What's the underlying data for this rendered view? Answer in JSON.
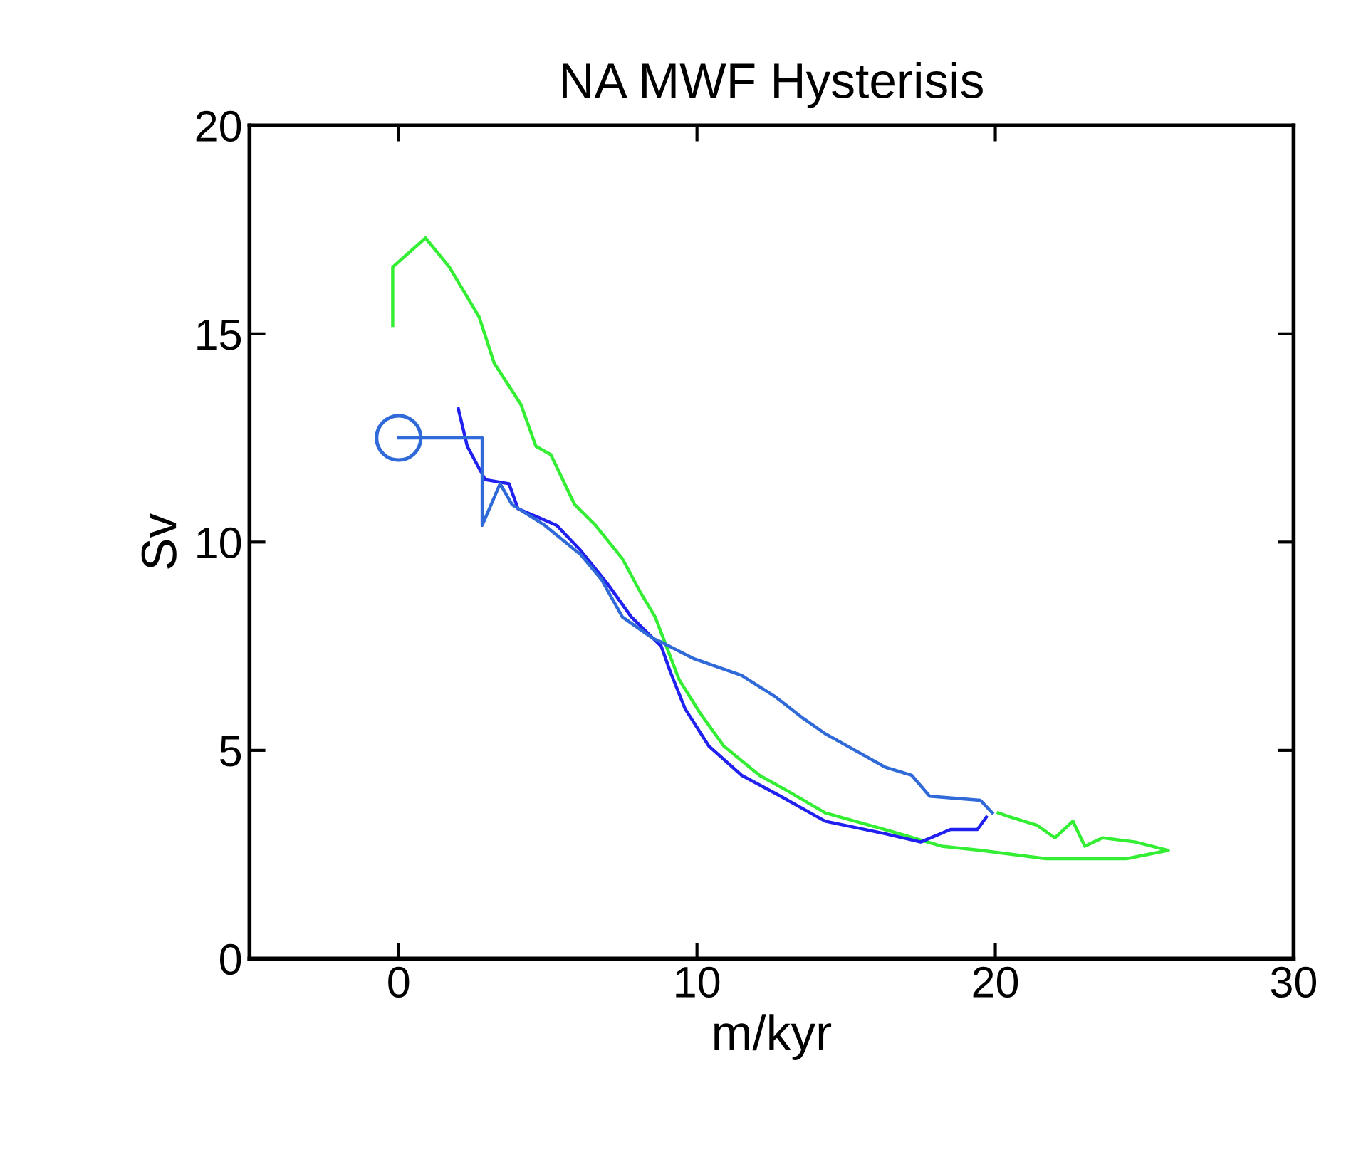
{
  "chart_data": {
    "type": "line",
    "title": "NA MWF Hysterisis",
    "xlabel": "m/kyr",
    "ylabel": "Sv",
    "xlim": [
      -5,
      30
    ],
    "ylim": [
      0,
      20
    ],
    "xticks": [
      0,
      10,
      20,
      30
    ],
    "yticks": [
      0,
      5,
      10,
      15,
      20
    ],
    "grid": false,
    "legend": false,
    "series": [
      {
        "color": "#33ee33",
        "x": [
          -0.2,
          -0.2,
          0.9,
          1.7,
          2.7,
          3.2,
          4.1,
          4.6,
          5.1,
          5.9,
          6.6,
          7.5,
          8.1,
          8.6,
          9.4,
          10.1,
          10.9,
          12.1,
          13.1,
          14.3,
          16.3,
          18.2,
          19.5,
          21.7,
          24.4,
          25.8,
          24.7,
          23.6,
          23.0,
          22.6,
          22.0,
          21.4,
          20.5,
          20.1
        ],
        "values": [
          15.2,
          16.6,
          17.3,
          16.6,
          15.4,
          14.3,
          13.3,
          12.3,
          12.1,
          10.9,
          10.4,
          9.6,
          8.8,
          8.2,
          6.7,
          5.9,
          5.1,
          4.4,
          4.0,
          3.5,
          3.1,
          2.7,
          2.6,
          2.4,
          2.4,
          2.6,
          2.8,
          2.9,
          2.7,
          3.3,
          2.9,
          3.2,
          3.4,
          3.5
        ]
      },
      {
        "color": "#2020f0",
        "x": [
          2.0,
          2.3,
          2.9,
          3.7,
          4.0,
          5.3,
          6.1,
          7.0,
          7.8,
          8.8,
          9.1,
          9.6,
          10.4,
          11.5,
          12.8,
          14.3,
          16.3,
          17.5,
          18.5,
          19.4,
          19.7
        ],
        "values": [
          13.2,
          12.3,
          11.5,
          11.4,
          10.8,
          10.4,
          9.8,
          9.0,
          8.2,
          7.5,
          6.9,
          6.0,
          5.1,
          4.4,
          3.9,
          3.3,
          3.0,
          2.8,
          3.1,
          3.1,
          3.4
        ]
      },
      {
        "color": "#2f6ad8",
        "x": [
          0,
          2.8,
          2.8,
          3.4,
          3.8,
          4.9,
          6.1,
          6.8,
          7.5,
          8.5,
          8.8,
          9.9,
          11.5,
          12.6,
          13.5,
          14.3,
          15.3,
          16.3,
          17.2,
          17.8,
          19.5,
          19.9
        ],
        "values": [
          12.5,
          12.5,
          10.4,
          11.4,
          10.9,
          10.4,
          9.7,
          9.1,
          8.2,
          7.7,
          7.6,
          7.2,
          6.8,
          6.3,
          5.8,
          5.4,
          5.0,
          4.6,
          4.4,
          3.9,
          3.8,
          3.5
        ]
      },
      {
        "type": "scatter",
        "marker": "circle",
        "color": "#2f6ad8",
        "x": [
          0
        ],
        "values": [
          12.5
        ]
      }
    ]
  }
}
